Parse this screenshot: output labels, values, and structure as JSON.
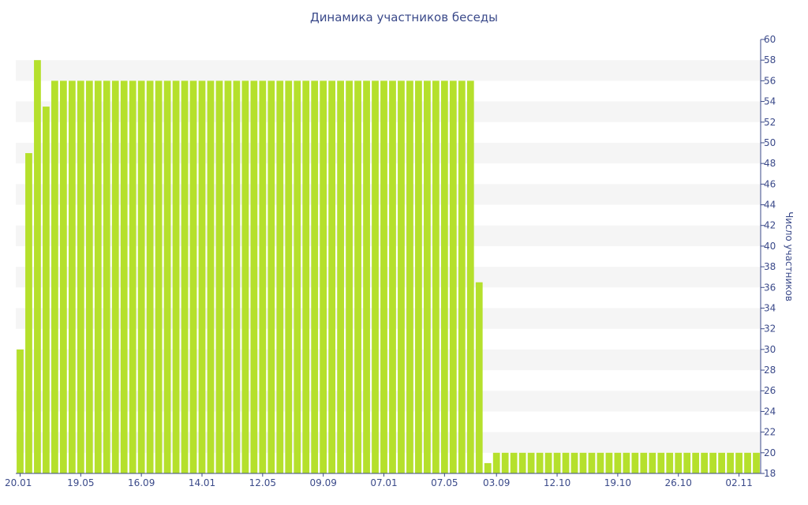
{
  "chart_data": {
    "type": "bar",
    "title": "Динамика участников беседы",
    "xlabel": "",
    "ylabel": "Число участников",
    "ylim": [
      18,
      60
    ],
    "ytick_step": 2,
    "y_axis_side": "right",
    "grid": "alternating horizontal bands",
    "legend": "none",
    "bar_color": "#b5e02c",
    "axis_color": "#3b4a8a",
    "band_color": "#f5f5f5",
    "x_tick_labels": [
      "20.01",
      "19.05",
      "16.09",
      "14.01",
      "12.05",
      "09.09",
      "07.01",
      "07.05",
      "03.09",
      "12.10",
      "19.10",
      "26.10",
      "02.11"
    ],
    "x_tick_label_indices": [
      0,
      7,
      14,
      21,
      28,
      35,
      42,
      49,
      55,
      62,
      69,
      76,
      83
    ],
    "values": [
      30,
      49,
      58,
      53.5,
      56,
      56,
      56,
      56,
      56,
      56,
      56,
      56,
      56,
      56,
      56,
      56,
      56,
      56,
      56,
      56,
      56,
      56,
      56,
      56,
      56,
      56,
      56,
      56,
      56,
      56,
      56,
      56,
      56,
      56,
      56,
      56,
      56,
      56,
      56,
      56,
      56,
      56,
      56,
      56,
      56,
      56,
      56,
      56,
      56,
      56,
      56,
      56,
      56,
      36.5,
      19,
      20,
      20,
      20,
      20,
      20,
      20,
      20,
      20,
      20,
      20,
      20,
      20,
      20,
      20,
      20,
      20,
      20,
      20,
      20,
      20,
      20,
      20,
      20,
      20,
      20,
      20,
      20,
      20,
      20,
      20,
      20
    ]
  }
}
